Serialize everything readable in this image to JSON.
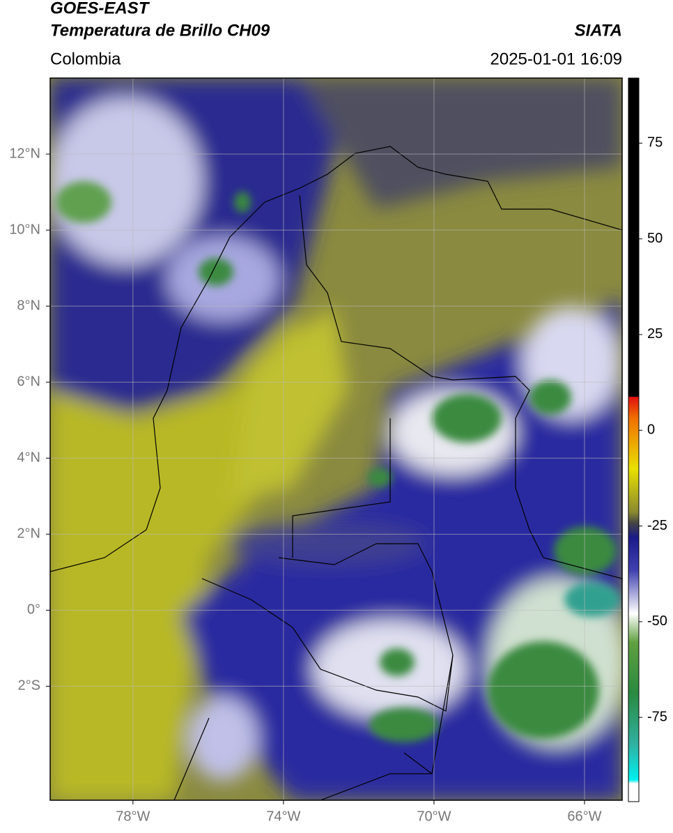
{
  "header": {
    "title_line1": "GOES-EAST",
    "title_line2": "Temperatura de Brillo CH09",
    "source": "SIATA",
    "region": "Colombia",
    "datetime": "2025-01-01 16:09"
  },
  "map": {
    "xlim": [
      -80.2,
      -65
    ],
    "ylim": [
      -5,
      14
    ],
    "grid": true,
    "xticks": [
      {
        "value": -78,
        "label": "78°W"
      },
      {
        "value": -74,
        "label": "74°W"
      },
      {
        "value": -70,
        "label": "70°W"
      },
      {
        "value": -66,
        "label": "66°W"
      }
    ],
    "yticks": [
      {
        "value": 12,
        "label": "12°N"
      },
      {
        "value": 10,
        "label": "10°N"
      },
      {
        "value": 8,
        "label": "8°N"
      },
      {
        "value": 6,
        "label": "6°N"
      },
      {
        "value": 4,
        "label": "4°N"
      },
      {
        "value": 2,
        "label": "2°N"
      },
      {
        "value": 0,
        "label": "0°"
      },
      {
        "value": -2,
        "label": "2°S"
      }
    ]
  },
  "colorbar": {
    "clim": [
      -97,
      92
    ],
    "ticks": [
      75,
      50,
      25,
      0,
      -25,
      -50,
      -75
    ]
  }
}
